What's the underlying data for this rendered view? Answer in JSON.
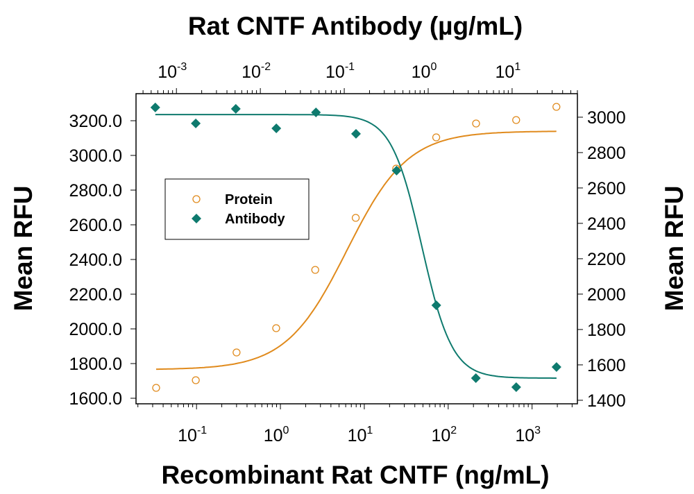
{
  "chart_data": {
    "type": "scatter",
    "title": "Rat CNTF Antibody (µg/mL)",
    "xlabel": "Recombinant Rat CNTF (ng/mL)",
    "ylabel": "Mean RFU",
    "y2label": "Mean RFU",
    "x_scale": "log",
    "x_range": [
      0.019,
      3470
    ],
    "x_ticks": [
      {
        "base": "10",
        "exp": "-1"
      },
      {
        "base": "10",
        "exp": "0"
      },
      {
        "base": "10",
        "exp": "1"
      },
      {
        "base": "10",
        "exp": "2"
      },
      {
        "base": "10",
        "exp": "3"
      }
    ],
    "x2_scale": "log",
    "x2_range": [
      0.00033,
      60
    ],
    "x2_ticks": [
      {
        "base": "10",
        "exp": "-3"
      },
      {
        "base": "10",
        "exp": "-2"
      },
      {
        "base": "10",
        "exp": "-1"
      },
      {
        "base": "10",
        "exp": "0"
      },
      {
        "base": "10",
        "exp": "1"
      }
    ],
    "y_range": [
      1568,
      3356
    ],
    "y_ticks": [
      "1600.0",
      "1800.0",
      "2000.0",
      "2200.0",
      "2400.0",
      "2600.0",
      "2800.0",
      "3000.0",
      "3200.0"
    ],
    "y2_range": [
      1380,
      3133
    ],
    "y2_ticks": [
      "1400",
      "1600",
      "1800",
      "2000",
      "2200",
      "2400",
      "2600",
      "2800",
      "3000"
    ],
    "grid": false,
    "legend_placement": "upper-left",
    "series": [
      {
        "name": "Protein",
        "marker": "open-circle",
        "color": "#E08A1C",
        "axes": "bottom-left",
        "x": [
          0.033,
          0.098,
          0.3,
          0.89,
          2.6,
          7.9,
          24,
          72,
          215,
          646,
          1950
        ],
        "y": [
          1660,
          1704,
          1864,
          2004,
          2340,
          2640,
          2924,
          3104,
          3184,
          3204,
          3280
        ],
        "fit": {
          "bottom": 1765,
          "top": 3140,
          "ec50": 6.2,
          "hill": 1.2
        }
      },
      {
        "name": "Antibody",
        "marker": "filled-diamond",
        "color": "#0E7A6E",
        "axes": "top-right",
        "x": [
          0.00056,
          0.0017,
          0.0051,
          0.0155,
          0.046,
          0.138,
          0.42,
          1.25,
          3.7,
          11.2,
          33.8
        ],
        "y": [
          3055,
          2965,
          3047,
          2937,
          3027,
          2906,
          2698,
          1937,
          1525,
          1474,
          1588
        ],
        "fit": {
          "bottom": 1525,
          "top": 3015,
          "ec50": 0.84,
          "hill": 2.4
        }
      }
    ]
  }
}
